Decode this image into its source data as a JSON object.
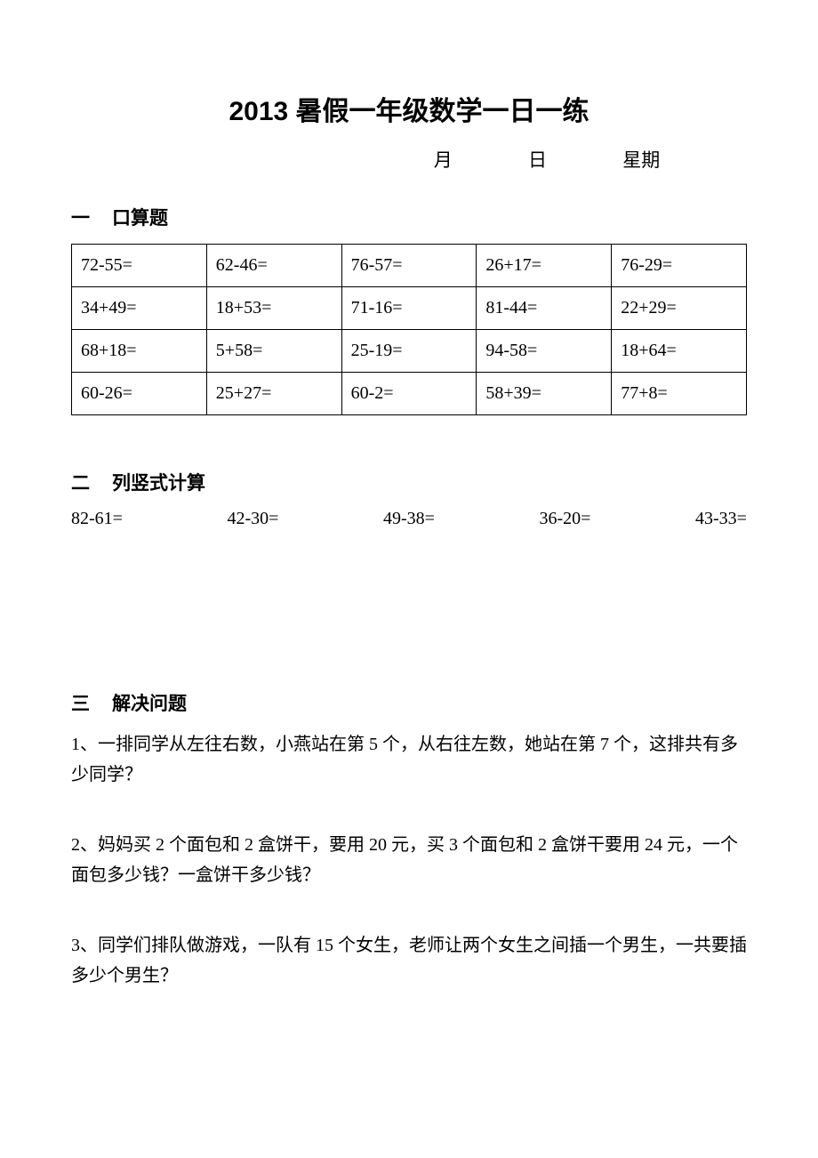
{
  "title": "2013 暑假一年级数学一日一练",
  "date_line": {
    "month": "月",
    "day": "日",
    "weekday": "星期"
  },
  "section1": {
    "num": "一",
    "label": "口算题",
    "rows": [
      [
        "72-55=",
        "62-46=",
        "76-57=",
        "26+17=",
        "76-29="
      ],
      [
        "34+49=",
        "18+53=",
        "71-16=",
        "81-44=",
        "22+29="
      ],
      [
        "68+18=",
        "5+58=",
        "25-19=",
        "94-58=",
        "18+64="
      ],
      [
        "60-26=",
        "25+27=",
        "60-2=",
        "58+39=",
        "77+8="
      ]
    ]
  },
  "section2": {
    "num": "二",
    "label": "列竖式计算",
    "items": [
      "82-61=",
      "42-30=",
      "49-38=",
      "36-20=",
      "43-33="
    ]
  },
  "section3": {
    "num": "三",
    "label": "解决问题",
    "problems": [
      "1、一排同学从左往右数，小燕站在第 5 个，从右往左数，她站在第 7 个，这排共有多少同学？",
      "2、妈妈买 2 个面包和 2 盒饼干，要用 20 元，买 3 个面包和 2 盒饼干要用 24 元，一个面包多少钱？一盒饼干多少钱？",
      "3、同学们排队做游戏，一队有 15 个女生，老师让两个女生之间插一个男生，一共要插多少个男生？"
    ]
  },
  "colors": {
    "background": "#ffffff",
    "text": "#000000",
    "border": "#000000"
  }
}
